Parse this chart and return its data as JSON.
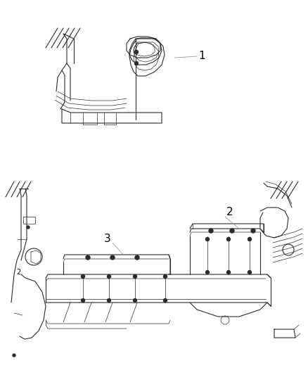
{
  "background_color": "#ffffff",
  "line_color": "#2a2a2a",
  "label_color": "#000000",
  "gray_line_color": "#888888",
  "fig_width": 4.38,
  "fig_height": 5.33,
  "dpi": 100,
  "label_fontsize": 9
}
